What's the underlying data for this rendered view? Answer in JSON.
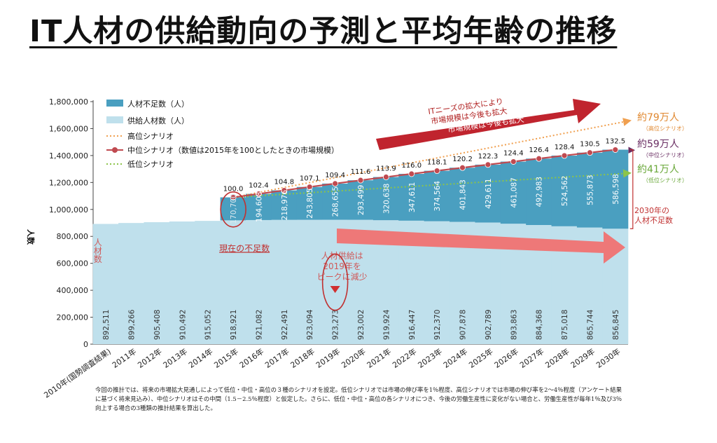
{
  "title": "IT人材の供給動向の予測と平均年齢の推移",
  "footnote": "今回の推計では、将来の市場拡大見通しによって低位・中位・高位の３種のシナリオを設定。低位シナリオでは市場の伸び率を1％程度、高位シナリオでは市場の伸び率を2～4％程度（アンケート結果に基づく将来見込み）、中位シナリオはその中間（1.5－2.5％程度）と仮定した。さらに、低位・中位・高位の各シナリオにつき、今後の労働生産性に変化がない場合と、労働生産性が毎年1％及び3％向上する場合の3種類の推計結果を算出した。",
  "colors": {
    "shortage": "#4a9fc0",
    "supply": "#bfe0ec",
    "high": "#f0a050",
    "mid": "#c04a50",
    "low": "#8cc44a",
    "arrow_dark": "#c0242e",
    "arrow_light": "#ee7878"
  },
  "chart_data": {
    "type": "bar",
    "ylabel": "人数",
    "ylim": [
      0,
      1800000
    ],
    "yticks": [
      "0",
      "200,000",
      "400,000",
      "600,000",
      "800,000",
      "1,000,000",
      "1,200,000",
      "1,400,000",
      "1,600,000",
      "1,800,000"
    ],
    "categories": [
      "2010年(国勢調査結果)",
      "2011年",
      "2012年",
      "2013年",
      "2014年",
      "2015年",
      "2016年",
      "2017年",
      "2018年",
      "2019年",
      "2020年",
      "2021年",
      "2022年",
      "2023年",
      "2024年",
      "2025年",
      "2026年",
      "2027年",
      "2028年",
      "2029年",
      "2030年"
    ],
    "series": [
      {
        "name": "供給人材数（人）",
        "values": [
          892511,
          899266,
          905408,
          910492,
          915052,
          918921,
          921082,
          922491,
          923094,
          923273,
          923002,
          919924,
          916447,
          912370,
          907878,
          902789,
          893863,
          884368,
          875018,
          865744,
          856845
        ],
        "labels": [
          "892,511",
          "899,266",
          "905,408",
          "910,492",
          "915,052",
          "918,921",
          "921,082",
          "922,491",
          "923,094",
          "923,273",
          "923,002",
          "919,924",
          "916,447",
          "912,370",
          "907,878",
          "902,789",
          "893,863",
          "884,368",
          "875,018",
          "865,744",
          "856,845"
        ]
      },
      {
        "name": "人材不足数（人）",
        "values": [
          null,
          null,
          null,
          null,
          null,
          170700,
          194608,
          218976,
          243805,
          268655,
          293499,
          320638,
          347611,
          374564,
          401843,
          429611,
          461087,
          492983,
          524562,
          555873,
          586598
        ],
        "labels": [
          "",
          "",
          "",
          "",
          "",
          "170,700",
          "194,608",
          "218,976",
          "243,805",
          "268,655",
          "293,499",
          "320,638",
          "347,611",
          "374,564",
          "401,843",
          "429,611",
          "461,087",
          "492,983",
          "524,562",
          "555,873",
          "586,598"
        ]
      },
      {
        "name": "中位シナリオ（数値は2015年を100としたときの市場規模）",
        "values": [
          null,
          null,
          null,
          null,
          null,
          100.0,
          102.4,
          104.8,
          107.1,
          109.4,
          111.6,
          113.9,
          116.0,
          118.1,
          120.2,
          122.3,
          124.4,
          126.4,
          128.4,
          130.5,
          132.5
        ],
        "labels": [
          "",
          "",
          "",
          "",
          "",
          "100.0",
          "102.4",
          "104.8",
          "107.1",
          "109.4",
          "111.6",
          "113.9",
          "116.0",
          "118.1",
          "120.2",
          "122.3",
          "124.4",
          "126.4",
          "128.4",
          "130.5",
          "132.5"
        ]
      },
      {
        "name": "高位シナリオ",
        "from": "2015年",
        "to": "2030年"
      },
      {
        "name": "低位シナリオ",
        "from": "2015年",
        "to": "2030年"
      }
    ],
    "annotations": {
      "supply_label": "人材数",
      "current_shortage": "現在の不足数",
      "peak_note": [
        "人材供給は",
        "2019年を",
        "ピークに減少"
      ],
      "market_note": [
        "ITニーズの拡大により",
        "市場規模は今後も拡大"
      ],
      "high_total": "約79万人",
      "high_sub": "（高位シナリオ）",
      "mid_total": "約59万人",
      "mid_sub": "（中位シナリオ）",
      "low_total": "約41万人",
      "low_sub": "（低位シナリオ）",
      "shortage_2030": [
        "2030年の",
        "人材不足数"
      ]
    }
  }
}
